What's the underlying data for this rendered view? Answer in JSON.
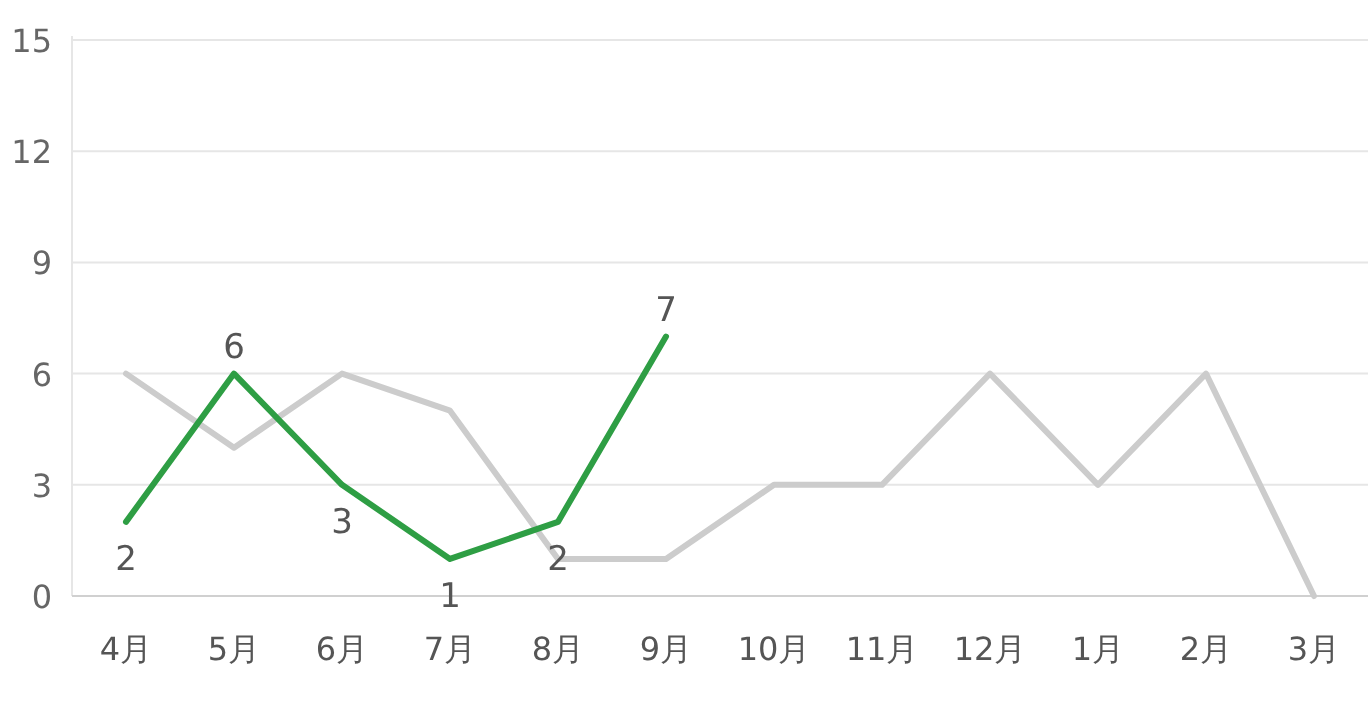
{
  "chart_data": {
    "type": "line",
    "categories": [
      "4月",
      "5月",
      "6月",
      "7月",
      "8月",
      "9月",
      "10月",
      "11月",
      "12月",
      "1月",
      "2月",
      "3月"
    ],
    "series": [
      {
        "color": "#cccccc",
        "values": [
          6,
          4,
          6,
          5,
          1,
          1,
          3,
          3,
          6,
          3,
          6,
          0
        ]
      },
      {
        "color": "#2e9e44",
        "values": [
          2,
          6,
          3,
          1,
          2,
          7,
          null,
          null,
          null,
          null,
          null,
          null
        ],
        "value_labels": [
          "2",
          "6",
          "3",
          "1",
          "2",
          "7",
          null,
          null,
          null,
          null,
          null,
          null
        ]
      }
    ],
    "ylim": [
      0,
      15
    ],
    "yticks": [
      0,
      3,
      6,
      9,
      12,
      15
    ],
    "grid": "y",
    "marker": "none",
    "line_style": "solid"
  }
}
